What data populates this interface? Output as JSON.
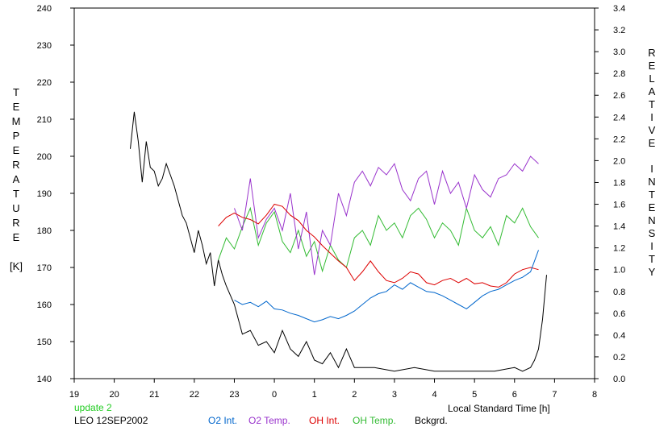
{
  "status_text": "update 2",
  "station_date": "LEO 12SEP2002",
  "colors": {
    "o2_int": "#0066cc",
    "o2_temp": "#9933cc",
    "oh_int": "#dd0000",
    "oh_temp": "#33bb33",
    "bckgrd": "#000000",
    "status": "#22cc22"
  },
  "chart_data": {
    "type": "line",
    "xlabel": "Local Standard Time [h]",
    "ylabel_left": [
      "T",
      "E",
      "M",
      "P",
      "E",
      "R",
      "A",
      "T",
      "U",
      "R",
      "E",
      "",
      "[K]"
    ],
    "ylabel_right": [
      "R",
      "E",
      "L",
      "A",
      "T",
      "I",
      "V",
      "E",
      "",
      "I",
      "N",
      "T",
      "E",
      "N",
      "S",
      "I",
      "T",
      "Y"
    ],
    "x_range_hours": [
      19,
      32
    ],
    "x_tick_values": [
      19,
      20,
      21,
      22,
      23,
      24,
      25,
      26,
      27,
      28,
      29,
      30,
      31,
      32
    ],
    "x_tick_labels": [
      "19",
      "20",
      "21",
      "22",
      "23",
      "0",
      "1",
      "2",
      "3",
      "4",
      "5",
      "6",
      "7",
      "8"
    ],
    "y_left_range": [
      140,
      240
    ],
    "y_left_ticks": [
      "140",
      "150",
      "160",
      "170",
      "180",
      "190",
      "200",
      "210",
      "220",
      "230",
      "240"
    ],
    "y_right_range": [
      0.0,
      3.4
    ],
    "y_right_ticks": [
      "0.0",
      "0.2",
      "0.4",
      "0.6",
      "0.8",
      "1.0",
      "1.2",
      "1.4",
      "1.6",
      "1.8",
      "2.0",
      "2.2",
      "2.4",
      "2.6",
      "2.8",
      "3.0",
      "3.2",
      "3.4"
    ],
    "grid": false,
    "series": [
      {
        "name": "O2 Int.",
        "axis": "right",
        "x": [
          23.0,
          23.2,
          23.4,
          23.6,
          23.8,
          24.0,
          24.2,
          24.4,
          24.6,
          24.8,
          25.0,
          25.2,
          25.4,
          25.6,
          25.8,
          26.0,
          26.2,
          26.4,
          26.6,
          26.8,
          27.0,
          27.2,
          27.4,
          27.6,
          27.8,
          28.0,
          28.2,
          28.4,
          28.6,
          28.8,
          29.0,
          29.2,
          29.4,
          29.6,
          29.8,
          30.0,
          30.2,
          30.4,
          30.6
        ],
        "y": [
          0.72,
          0.68,
          0.7,
          0.66,
          0.71,
          0.64,
          0.63,
          0.6,
          0.58,
          0.55,
          0.52,
          0.54,
          0.57,
          0.55,
          0.58,
          0.62,
          0.68,
          0.74,
          0.78,
          0.8,
          0.86,
          0.82,
          0.88,
          0.84,
          0.8,
          0.79,
          0.76,
          0.72,
          0.68,
          0.64,
          0.7,
          0.76,
          0.8,
          0.82,
          0.86,
          0.9,
          0.93,
          0.98,
          1.18
        ]
      },
      {
        "name": "O2 Temp.",
        "axis": "left",
        "x": [
          23.0,
          23.2,
          23.4,
          23.6,
          23.8,
          24.0,
          24.2,
          24.4,
          24.6,
          24.8,
          25.0,
          25.2,
          25.4,
          25.6,
          25.8,
          26.0,
          26.2,
          26.4,
          26.6,
          26.8,
          27.0,
          27.2,
          27.4,
          27.6,
          27.8,
          28.0,
          28.2,
          28.4,
          28.6,
          28.8,
          29.0,
          29.2,
          29.4,
          29.6,
          29.8,
          30.0,
          30.2,
          30.4,
          30.6
        ],
        "y": [
          186,
          180,
          194,
          178,
          183,
          186,
          180,
          190,
          175,
          185,
          168,
          180,
          176,
          190,
          184,
          193,
          196,
          192,
          197,
          195,
          198,
          191,
          188,
          194,
          196,
          187,
          196,
          190,
          193,
          186,
          195,
          191,
          189,
          194,
          195,
          198,
          196,
          200,
          198
        ]
      },
      {
        "name": "OH Int.",
        "axis": "right",
        "x": [
          22.6,
          22.8,
          23.0,
          23.2,
          23.4,
          23.6,
          23.8,
          24.0,
          24.2,
          24.4,
          24.6,
          24.8,
          25.0,
          25.2,
          25.4,
          25.6,
          25.8,
          26.0,
          26.2,
          26.4,
          26.6,
          26.8,
          27.0,
          27.2,
          27.4,
          27.6,
          27.8,
          28.0,
          28.2,
          28.4,
          28.6,
          28.8,
          29.0,
          29.2,
          29.4,
          29.6,
          29.8,
          30.0,
          30.2,
          30.4,
          30.6
        ],
        "y": [
          1.4,
          1.48,
          1.52,
          1.48,
          1.46,
          1.42,
          1.5,
          1.6,
          1.58,
          1.5,
          1.45,
          1.36,
          1.3,
          1.22,
          1.15,
          1.08,
          1.02,
          0.9,
          0.98,
          1.08,
          0.98,
          0.9,
          0.88,
          0.92,
          0.98,
          0.96,
          0.88,
          0.86,
          0.9,
          0.92,
          0.88,
          0.92,
          0.87,
          0.88,
          0.85,
          0.84,
          0.88,
          0.96,
          1.0,
          1.02,
          1.0
        ]
      },
      {
        "name": "OH Temp.",
        "axis": "left",
        "x": [
          22.6,
          22.8,
          23.0,
          23.2,
          23.4,
          23.6,
          23.8,
          24.0,
          24.2,
          24.4,
          24.6,
          24.8,
          25.0,
          25.2,
          25.4,
          25.6,
          25.8,
          26.0,
          26.2,
          26.4,
          26.6,
          26.8,
          27.0,
          27.2,
          27.4,
          27.6,
          27.8,
          28.0,
          28.2,
          28.4,
          28.6,
          28.8,
          29.0,
          29.2,
          29.4,
          29.6,
          29.8,
          30.0,
          30.2,
          30.4,
          30.6
        ],
        "y": [
          172,
          178,
          175,
          181,
          186,
          176,
          182,
          185,
          177,
          174,
          180,
          173,
          177,
          169,
          176,
          172,
          170,
          178,
          180,
          176,
          184,
          180,
          182,
          178,
          184,
          186,
          183,
          178,
          182,
          180,
          176,
          186,
          180,
          178,
          181,
          176,
          184,
          182,
          186,
          181,
          178
        ]
      },
      {
        "name": "Bckgrd.",
        "axis": "left",
        "x": [
          20.4,
          20.5,
          20.6,
          20.7,
          20.8,
          20.9,
          21.0,
          21.1,
          21.2,
          21.3,
          21.4,
          21.5,
          21.6,
          21.7,
          21.8,
          21.9,
          22.0,
          22.1,
          22.2,
          22.3,
          22.4,
          22.5,
          22.6,
          22.7,
          22.8,
          23.0,
          23.2,
          23.4,
          23.6,
          23.8,
          24.0,
          24.2,
          24.4,
          24.6,
          24.8,
          25.0,
          25.2,
          25.4,
          25.6,
          25.8,
          26.0,
          26.5,
          27.0,
          27.5,
          28.0,
          28.5,
          29.0,
          29.5,
          30.0,
          30.2,
          30.4,
          30.5,
          30.6,
          30.7,
          30.8
        ],
        "y": [
          202,
          212,
          204,
          193,
          204,
          197,
          196,
          192,
          194,
          198,
          195,
          192,
          188,
          184,
          182,
          178,
          174,
          180,
          176,
          171,
          174,
          165,
          172,
          168,
          165,
          160,
          152,
          153,
          149,
          150,
          147,
          153,
          148,
          146,
          150,
          145,
          144,
          147,
          143,
          148,
          143,
          143,
          142,
          143,
          142,
          142,
          142,
          142,
          143,
          142,
          143,
          145,
          148,
          156,
          168
        ]
      }
    ]
  }
}
